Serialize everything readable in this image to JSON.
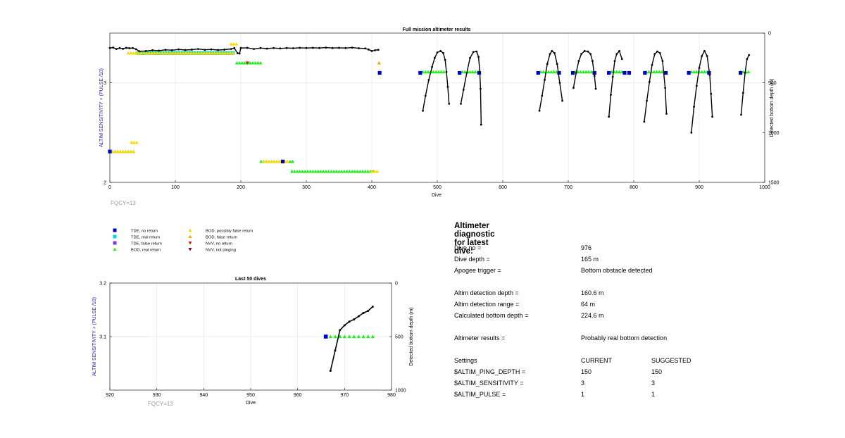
{
  "colors": {
    "tde_no_return": "#0000cc",
    "tde_real_return": "#00d8e8",
    "tde_false_return": "#7a3fd6",
    "bod_real_return": "#22ee22",
    "bod_possibly_false": "#ffd700",
    "bod_false_return": "#ffa500",
    "nvv_no_return": "#dd2200",
    "nvv_not_pinging": "#7a1010",
    "axis_left": "#1a1acc",
    "depth_line": "#000000",
    "fqcy": "#9a9a9a",
    "grid": "#e6e6e6"
  },
  "chart_data": [
    {
      "type": "scatter",
      "title": "Full mission altimeter results",
      "xlabel": "Dive",
      "ylabel": "ALTIM SENSITIVITY + (PULSE /10)",
      "y2label": "Detected bottom depth (m)",
      "xlim": [
        0,
        1000
      ],
      "ylim": [
        2,
        3.5
      ],
      "y2lim": [
        0,
        1500
      ],
      "y2_reversed": true,
      "x_ticks": [
        "0",
        "100",
        "200",
        "300",
        "400",
        "500",
        "600",
        "700",
        "800",
        "900",
        "1000"
      ],
      "y_ticks": [
        "2",
        "3"
      ],
      "y2_ticks": [
        "0",
        "500",
        "1000",
        "1500"
      ],
      "annotation": "FQCY=13",
      "grid": true,
      "series": [
        {
          "kind": "tde_real_return",
          "segments": [
            [
              44,
              190,
              3.3
            ]
          ]
        },
        {
          "kind": "bod_real_return",
          "segments": [
            [
              40,
              188,
              3.3
            ],
            [
              194,
              232,
              3.2
            ],
            [
              231,
              282,
              2.21
            ],
            [
              278,
              402,
              2.11
            ],
            [
              0,
              37,
              2.31
            ],
            [
              478,
              512,
              3.11
            ],
            [
              538,
              562,
              3.11
            ],
            [
              658,
              684,
              3.11
            ],
            [
              711,
              738,
              3.11
            ],
            [
              766,
              784,
              3.11
            ],
            [
              819,
              846,
              3.11
            ],
            [
              888,
              912,
              3.11
            ],
            [
              963,
              978,
              3.11
            ]
          ]
        },
        {
          "kind": "bod_possibly_false",
          "segments": [
            [
              185,
              195,
              3.39
            ],
            [
              33,
              42,
              2.4
            ],
            [
              235,
              272,
              2.21
            ],
            [
              0,
              37,
              2.31
            ],
            [
              400,
              410,
              2.11
            ],
            [
              28,
              188,
              3.3
            ]
          ]
        },
        {
          "kind": "bod_false_return",
          "points": [
            [
              411,
              3.2
            ]
          ]
        },
        {
          "kind": "nvv_no_return",
          "points": [
            [
              210,
              3.2
            ]
          ]
        },
        {
          "kind": "tde_no_return",
          "points": [
            [
              412,
              3.1
            ],
            [
              474,
              3.1
            ],
            [
              534,
              3.1
            ],
            [
              564,
              3.1
            ],
            [
              654,
              3.1
            ],
            [
              686,
              3.1
            ],
            [
              707,
              3.1
            ],
            [
              740,
              3.1
            ],
            [
              762,
              3.1
            ],
            [
              786,
              3.1
            ],
            [
              793,
              3.1
            ],
            [
              817,
              3.1
            ],
            [
              849,
              3.1
            ],
            [
              884,
              3.1
            ],
            [
              915,
              3.1
            ],
            [
              963,
              3.1
            ],
            [
              0,
              2.31
            ],
            [
              264,
              2.21
            ]
          ]
        }
      ],
      "depth_segments": [
        [
          [
            0,
            150
          ],
          [
            5,
            145
          ],
          [
            10,
            160
          ],
          [
            15,
            150
          ],
          [
            20,
            158
          ],
          [
            25,
            148
          ],
          [
            30,
            152
          ],
          [
            35,
            150
          ],
          [
            40,
            162
          ],
          [
            45,
            182
          ],
          [
            55,
            180
          ],
          [
            65,
            172
          ],
          [
            75,
            176
          ],
          [
            85,
            168
          ],
          [
            95,
            172
          ],
          [
            105,
            164
          ],
          [
            115,
            170
          ],
          [
            125,
            166
          ],
          [
            135,
            160
          ],
          [
            145,
            168
          ],
          [
            155,
            164
          ],
          [
            165,
            170
          ],
          [
            175,
            166
          ],
          [
            185,
            160
          ],
          [
            190,
            150
          ],
          [
            195,
            202
          ],
          [
            198,
            205
          ],
          [
            200,
            150
          ],
          [
            210,
            148
          ],
          [
            220,
            160
          ],
          [
            230,
            150
          ],
          [
            240,
            156
          ],
          [
            250,
            150
          ],
          [
            260,
            154
          ],
          [
            270,
            150
          ],
          [
            280,
            152
          ],
          [
            290,
            148
          ],
          [
            300,
            150
          ],
          [
            310,
            148
          ],
          [
            320,
            150
          ],
          [
            330,
            146
          ],
          [
            340,
            150
          ],
          [
            350,
            148
          ],
          [
            360,
            150
          ],
          [
            370,
            146
          ],
          [
            380,
            152
          ],
          [
            390,
            154
          ],
          [
            395,
            165
          ],
          [
            400,
            180
          ],
          [
            405,
            172
          ],
          [
            410,
            168
          ]
        ],
        [
          [
            478,
            780
          ],
          [
            482,
            630
          ],
          [
            487,
            470
          ],
          [
            492,
            340
          ],
          [
            496,
            250
          ],
          [
            500,
            195
          ],
          [
            505,
            180
          ],
          [
            509,
            200
          ],
          [
            512,
            270
          ],
          [
            514,
            390
          ],
          [
            516,
            540
          ],
          [
            518,
            710
          ]
        ],
        [
          [
            536,
            710
          ],
          [
            540,
            570
          ],
          [
            545,
            400
          ],
          [
            550,
            250
          ],
          [
            555,
            190
          ],
          [
            560,
            185
          ],
          [
            563,
            240
          ],
          [
            565,
            390
          ],
          [
            566,
            560
          ],
          [
            567,
            920
          ]
        ],
        [
          [
            656,
            780
          ],
          [
            660,
            630
          ],
          [
            664,
            470
          ],
          [
            668,
            310
          ],
          [
            672,
            210
          ],
          [
            675,
            180
          ],
          [
            679,
            200
          ],
          [
            683,
            310
          ],
          [
            687,
            500
          ],
          [
            691,
            680
          ]
        ],
        [
          [
            708,
            550
          ],
          [
            712,
            400
          ],
          [
            716,
            280
          ],
          [
            720,
            210
          ],
          [
            725,
            180
          ],
          [
            730,
            185
          ],
          [
            734,
            210
          ],
          [
            737,
            280
          ],
          [
            740,
            430
          ],
          [
            742,
            560
          ]
        ],
        [
          [
            762,
            840
          ],
          [
            765,
            620
          ],
          [
            768,
            440
          ],
          [
            771,
            280
          ],
          [
            774,
            210
          ],
          [
            778,
            180
          ],
          [
            782,
            260
          ]
        ],
        [
          [
            816,
            890
          ],
          [
            820,
            680
          ],
          [
            824,
            490
          ],
          [
            828,
            320
          ],
          [
            832,
            210
          ],
          [
            836,
            185
          ],
          [
            840,
            200
          ],
          [
            844,
            280
          ],
          [
            848,
            550
          ],
          [
            850,
            810
          ]
        ],
        [
          [
            888,
            1000
          ],
          [
            892,
            740
          ],
          [
            896,
            530
          ],
          [
            900,
            350
          ],
          [
            904,
            230
          ],
          [
            908,
            180
          ],
          [
            912,
            230
          ],
          [
            916,
            420
          ],
          [
            918,
            610
          ],
          [
            920,
            840
          ]
        ],
        [
          [
            964,
            820
          ],
          [
            967,
            600
          ],
          [
            970,
            400
          ],
          [
            973,
            260
          ],
          [
            976,
            220
          ]
        ]
      ]
    },
    {
      "type": "scatter",
      "title": "Last 50 dives",
      "xlabel": "Dive",
      "ylabel": "ALTIM SENSITIVITY + (PULSE /10)",
      "y2label": "Detected bottom depth (m)",
      "xlim": [
        920,
        980
      ],
      "ylim": [
        3.0,
        3.2
      ],
      "y2lim": [
        0,
        1000
      ],
      "y2_reversed": true,
      "x_ticks": [
        "920",
        "930",
        "940",
        "950",
        "960",
        "970",
        "980"
      ],
      "y_ticks": [
        "3.1",
        "3.2"
      ],
      "y2_ticks": [
        "0",
        "500",
        "1000"
      ],
      "annotation": "FQCY=13",
      "grid": true,
      "series": [
        {
          "kind": "tde_no_return",
          "points": [
            [
              966,
              3.1
            ]
          ]
        },
        {
          "kind": "bod_real_return",
          "points": [
            [
              967,
              3.1
            ],
            [
              968,
              3.1
            ],
            [
              969,
              3.1
            ],
            [
              970,
              3.1
            ],
            [
              971,
              3.1
            ],
            [
              972,
              3.1
            ],
            [
              973,
              3.1
            ],
            [
              974,
              3.1
            ],
            [
              975,
              3.1
            ],
            [
              976,
              3.1
            ]
          ]
        }
      ],
      "depth": [
        [
          967,
          820
        ],
        [
          968,
          630
        ],
        [
          969,
          440
        ],
        [
          970,
          395
        ],
        [
          971,
          360
        ],
        [
          972,
          340
        ],
        [
          973,
          310
        ],
        [
          974,
          280
        ],
        [
          975,
          260
        ],
        [
          976,
          220
        ]
      ]
    }
  ],
  "legend": {
    "items": [
      {
        "kind": "tde_no_return",
        "label": "TDE, no return",
        "marker": "square"
      },
      {
        "kind": "tde_real_return",
        "label": "TDE, real return",
        "marker": "square"
      },
      {
        "kind": "tde_false_return",
        "label": "TDE, false return",
        "marker": "square"
      },
      {
        "kind": "bod_real_return",
        "label": "BOD, real return",
        "marker": "triangle-up"
      },
      {
        "kind": "bod_possibly_false",
        "label": "BOD, possibly false return",
        "marker": "triangle-up"
      },
      {
        "kind": "bod_false_return",
        "label": "BOD, false return",
        "marker": "triangle-up"
      },
      {
        "kind": "nvv_no_return",
        "label": "NVV, no return",
        "marker": "triangle-down"
      },
      {
        "kind": "nvv_not_pinging",
        "label": "NVV, not pinging",
        "marker": "triangle-down"
      }
    ]
  },
  "diagnostic": {
    "title": "Altimeter diagnostic for latest dive:",
    "dive_no_label": "Dive no =",
    "dive_no_value": "976",
    "dive_depth_label": "Dive depth =",
    "dive_depth_value": "165 m",
    "apogee_label": "Apogee trigger =",
    "apogee_value": "Bottom obstacle detected",
    "altim_depth_label": "Altim detection depth =",
    "altim_depth_value": "160.6 m",
    "altim_range_label": "Altim detection range =",
    "altim_range_value": "64 m",
    "calc_bottom_label": "Calculated bottom depth =",
    "calc_bottom_value": "224.6 m",
    "results_label": "Altimeter results =",
    "results_value": "Probably real bottom detection",
    "settings_label": "Settings",
    "current_label": "CURRENT",
    "suggested_label": "SUGGESTED",
    "ping_depth_label": "$ALTIM_PING_DEPTH =",
    "ping_depth_current": "150",
    "ping_depth_suggested": "150",
    "sensitivity_label": "$ALTIM_SENSITIVITY =",
    "sensitivity_current": "3",
    "sensitivity_suggested": "3",
    "pulse_label": "$ALTIM_PULSE =",
    "pulse_current": "1",
    "pulse_suggested": "1"
  }
}
